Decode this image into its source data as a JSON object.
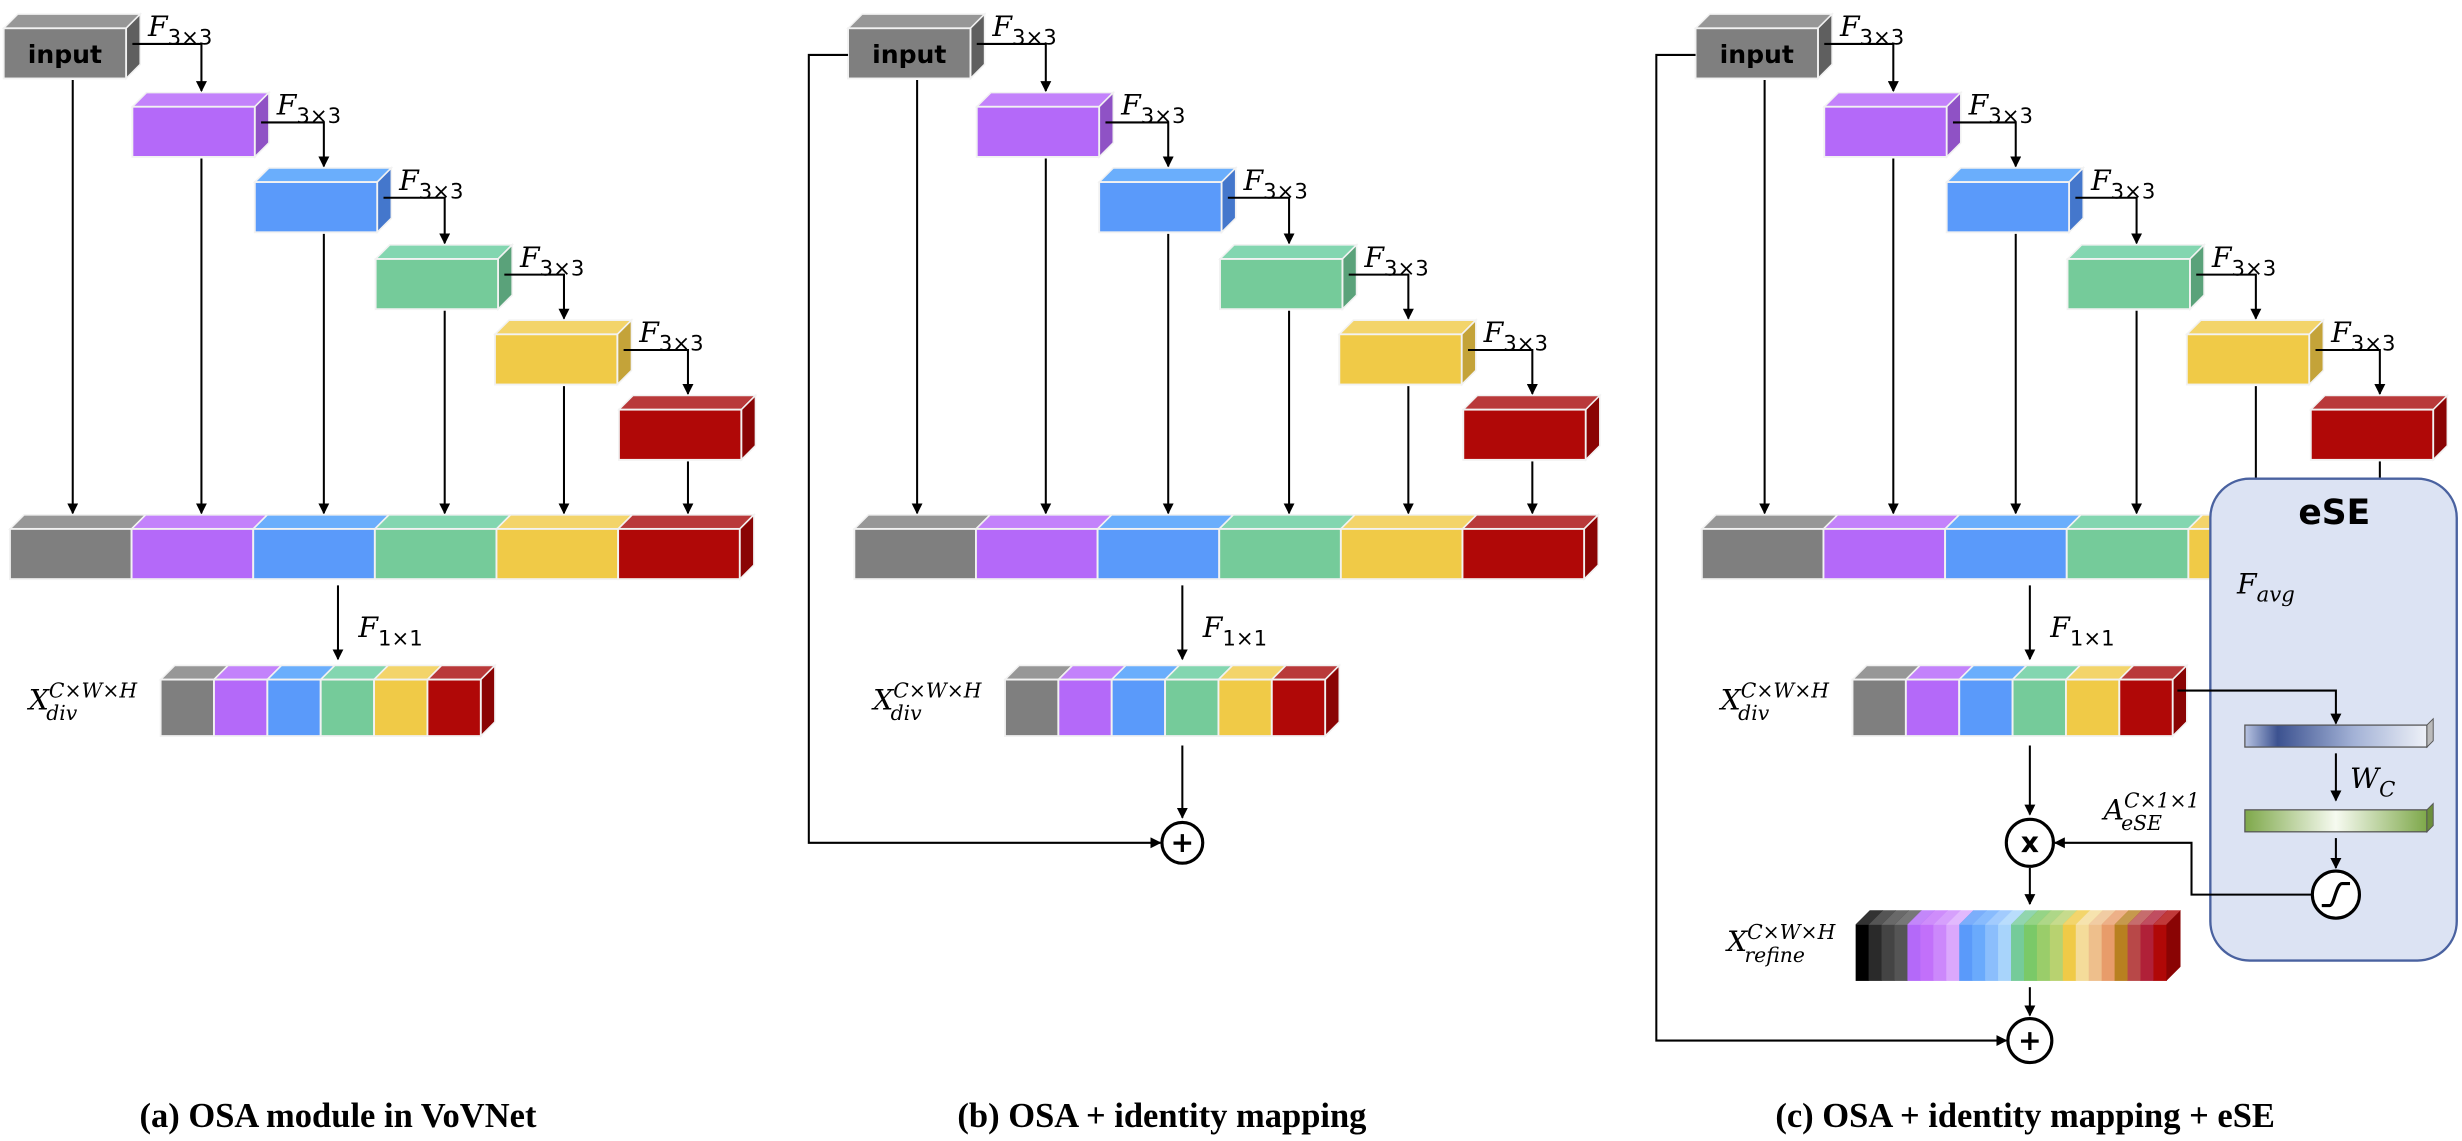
{
  "colors": {
    "gray": {
      "front": "#7f7f7f",
      "top": "#979797",
      "side": "#5f5f5f"
    },
    "purple": {
      "front": "#b469f9",
      "top": "#c382fb",
      "side": "#8f52c5"
    },
    "blue": {
      "front": "#5a9afa",
      "top": "#6aaefc",
      "side": "#4477cc"
    },
    "green": {
      "front": "#75cb9a",
      "top": "#83d6b0",
      "side": "#5aa27a"
    },
    "yellow": {
      "front": "#f0ca47",
      "top": "#f3d46a",
      "side": "#c4a339"
    },
    "red": {
      "front": "#b00807",
      "top": "#b9393a",
      "side": "#8a0404"
    },
    "ese_box_fill": "#dce3f3",
    "ese_box_stroke": "#4a62a0"
  },
  "block_order": [
    "gray",
    "purple",
    "blue",
    "green",
    "yellow",
    "red"
  ],
  "labels": {
    "input": "input",
    "conv3": {
      "base": "F",
      "sub": "3×3"
    },
    "conv1": {
      "base": "F",
      "sub": "1×1"
    },
    "xdiv": {
      "base": "X",
      "sup": "C×W×H",
      "sub": "div"
    },
    "xrefine": {
      "base": "X",
      "sup": "C×W×H",
      "sub": "refine"
    },
    "favg": {
      "base": "F",
      "sub": "avg"
    },
    "wc": {
      "base": "W",
      "sub": "C"
    },
    "aese": {
      "base": "A",
      "sup": "C×1×1",
      "sub": "eSE"
    },
    "multiply": "x",
    "add": "+",
    "ese_title": "eSE"
  },
  "panels": [
    {
      "id": "a",
      "title": "(a) OSA module in VoVNet",
      "identity": false,
      "ese": false
    },
    {
      "id": "b",
      "title": "(b) OSA + identity mapping",
      "identity": true,
      "ese": false
    },
    {
      "id": "c",
      "title": "(c) OSA + identity mapping + eSE",
      "identity": true,
      "ese": true
    }
  ],
  "refine_stripes": [
    "#000000",
    "#2a2a2a",
    "#444444",
    "#555555",
    "#b469f9",
    "#c270fa",
    "#cc88fb",
    "#dba8fc",
    "#5a9afa",
    "#6aaafc",
    "#8bbefc",
    "#a8d4fb",
    "#75cb9a",
    "#7ac968",
    "#9acd6a",
    "#b8d270",
    "#f0ca47",
    "#f4dc9a",
    "#eebf8c",
    "#e89c6a",
    "#b88020",
    "#b84848",
    "#b02038",
    "#b00807"
  ]
}
